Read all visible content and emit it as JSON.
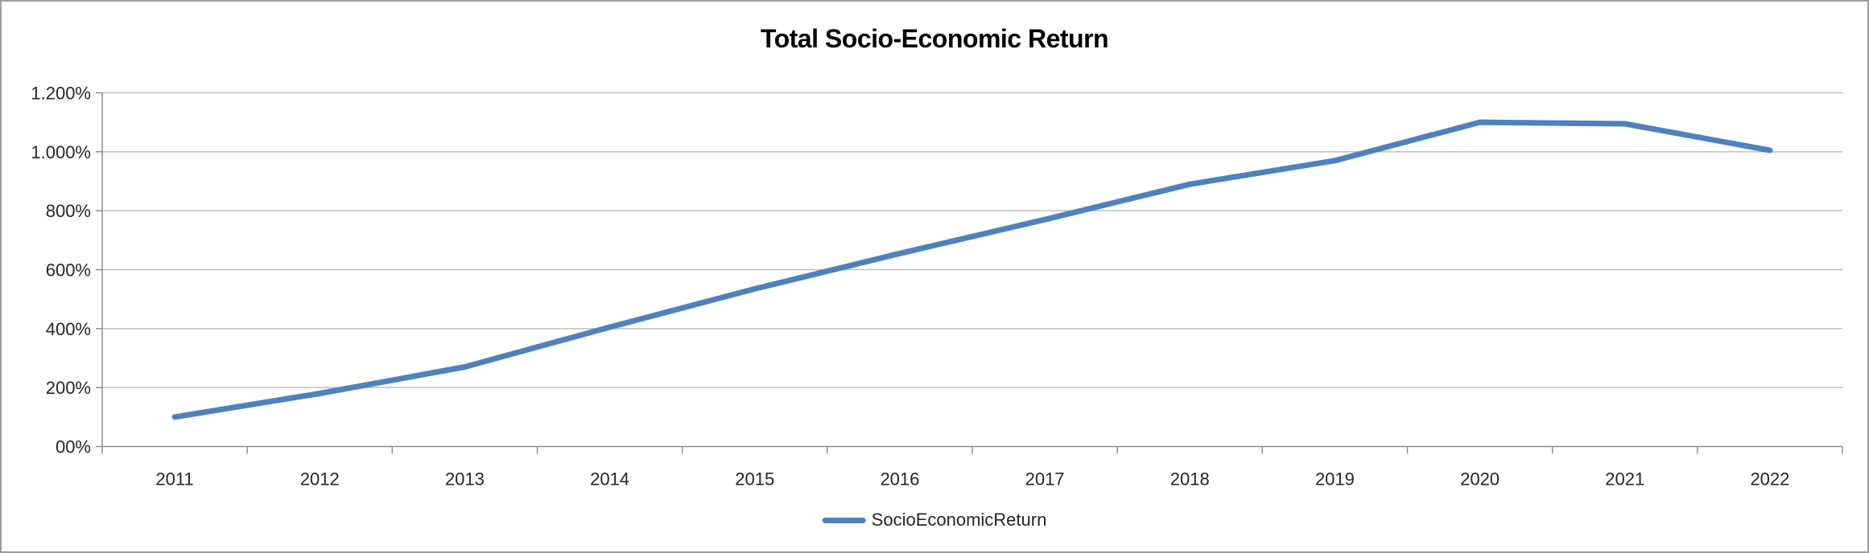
{
  "chart_data": {
    "type": "line",
    "title": "Total Socio-Economic Return",
    "categories": [
      "2011",
      "2012",
      "2013",
      "2014",
      "2015",
      "2016",
      "2017",
      "2018",
      "2019",
      "2020",
      "2021",
      "2022"
    ],
    "series": [
      {
        "name": "SocioEconomicReturn",
        "color": "#4F81BD",
        "values": [
          100,
          180,
          270,
          405,
          535,
          655,
          770,
          890,
          970,
          1100,
          1095,
          1005
        ]
      }
    ],
    "xlabel": "",
    "ylabel": "",
    "ylim": [
      0,
      1200
    ],
    "y_tick_interval": 200,
    "y_tick_labels": [
      "00%",
      "200%",
      "400%",
      "600%",
      "800%",
      "1.000%",
      "1.200%"
    ],
    "x_tick_labels_visible": true,
    "grid": "horizontal",
    "legend_position": "bottom-center"
  },
  "style": {
    "accent_color": "#4F81BD",
    "gridline_color": "#bfbfbf",
    "axis_color": "#8f8f8f",
    "label_color": "#262626",
    "title_color": "#000000",
    "frame_border_color": "#9d9d9d",
    "background_color": "#ffffff"
  }
}
